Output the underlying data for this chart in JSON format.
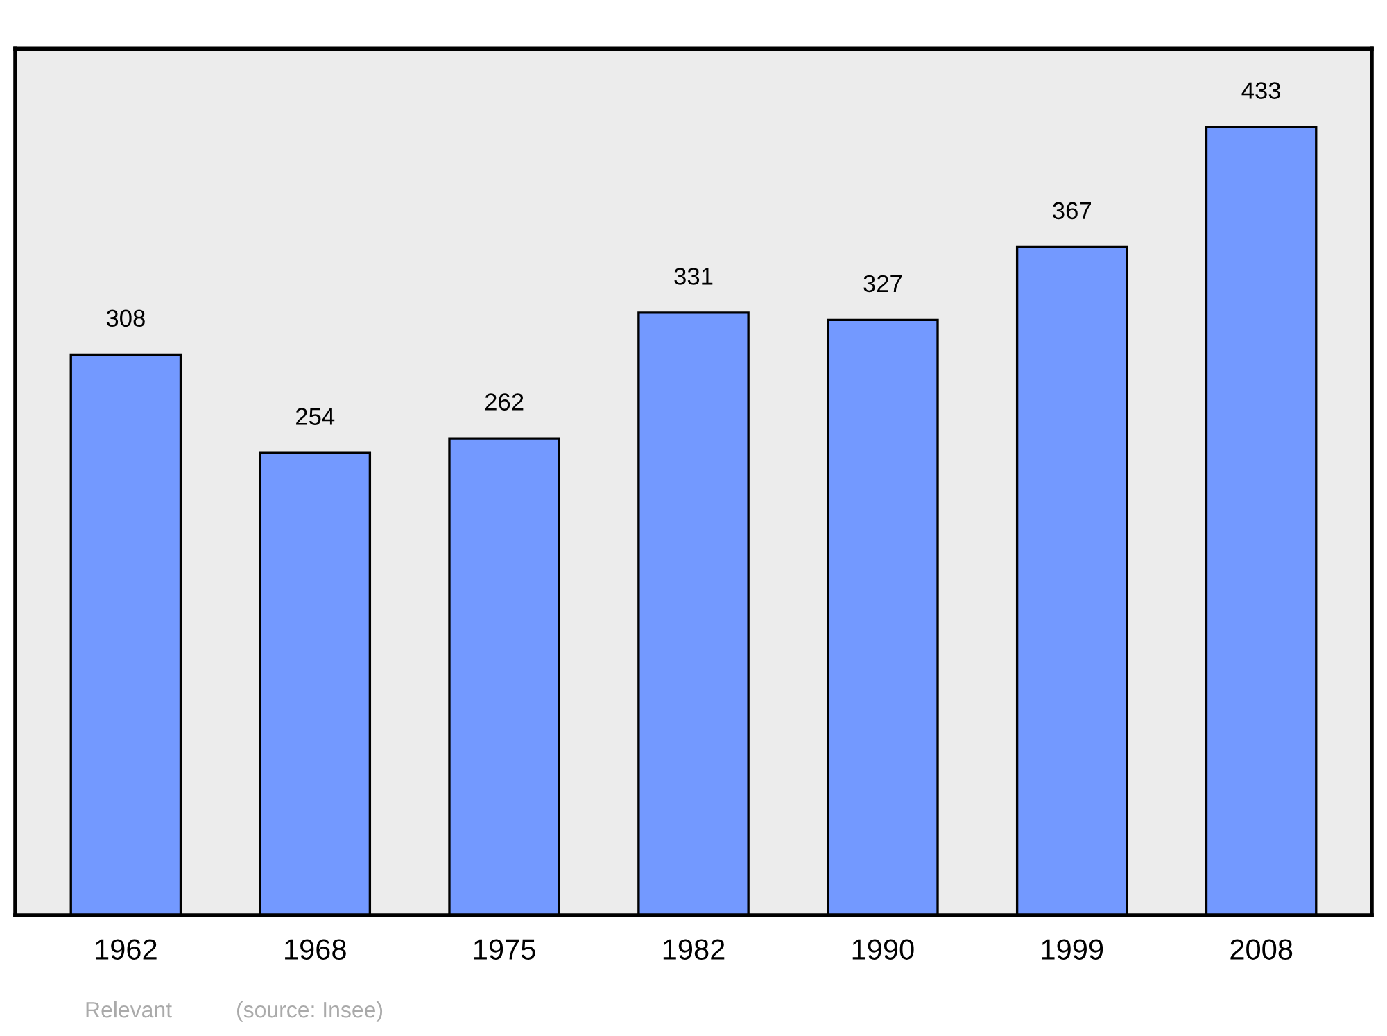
{
  "chart_data": {
    "type": "bar",
    "categories": [
      "1962",
      "1968",
      "1975",
      "1982",
      "1990",
      "1999",
      "2008"
    ],
    "values": [
      308,
      254,
      262,
      331,
      327,
      367,
      433
    ],
    "color": "#7399ff",
    "ylim": [
      0,
      476
    ],
    "data_labels": true,
    "grid": false,
    "legend": false,
    "tick_labels": "x",
    "annotations": [
      "Relevant",
      "(source: Insee)"
    ]
  }
}
